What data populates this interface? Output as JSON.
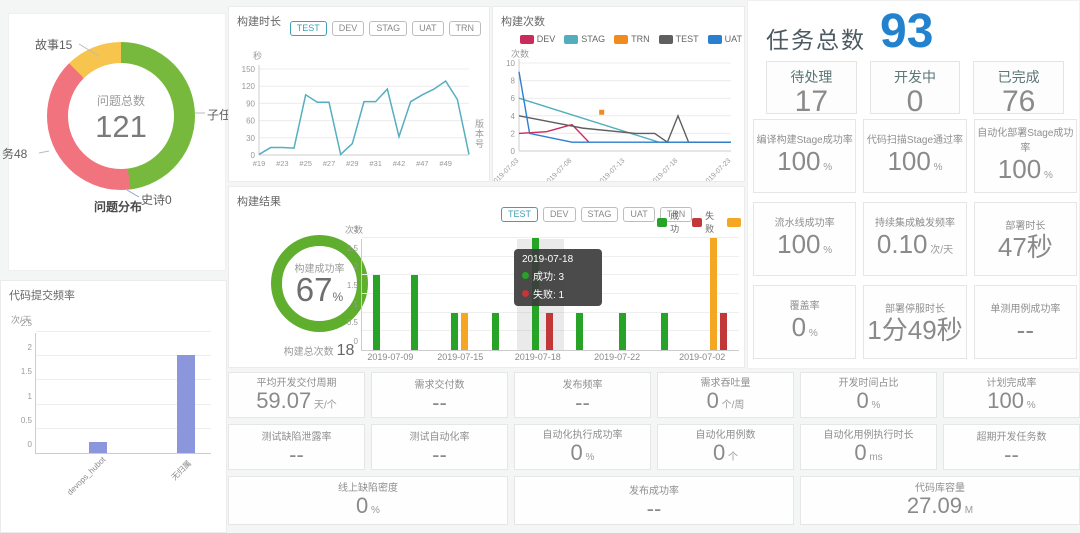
{
  "issue_panel": {
    "title": "问题分布",
    "center_label": "问题总数",
    "center_value": "121",
    "slices": [
      {
        "label": "子任",
        "value": 58,
        "color": "#77b93c"
      },
      {
        "label": "史诗0",
        "value": 0,
        "color": "#9aa7b5"
      },
      {
        "label": "务48",
        "value": 48,
        "color": "#f0737e"
      },
      {
        "label": "故事15",
        "value": 15,
        "color": "#f7c44d"
      }
    ]
  },
  "duration_panel": {
    "title": "构建时长",
    "y_unit": "秒",
    "x_unit": "版本号",
    "line_color": "#56aec0",
    "tabs": [
      {
        "label": "TEST",
        "active": true
      },
      {
        "label": "DEV",
        "active": false
      },
      {
        "label": "STAG",
        "active": false
      },
      {
        "label": "UAT",
        "active": false
      },
      {
        "label": "TRN",
        "active": false
      }
    ],
    "chart_data": {
      "type": "line",
      "ylim": [
        0,
        150
      ],
      "y_ticks": [
        0,
        30,
        60,
        90,
        120,
        150
      ],
      "x_labels": [
        "#19",
        "#23",
        "#25",
        "#27",
        "#29",
        "#31",
        "#42",
        "#47",
        "#49"
      ],
      "values": [
        1,
        13,
        13,
        12,
        105,
        92,
        92,
        1,
        20,
        93,
        93,
        115,
        32,
        93,
        105,
        115,
        129,
        97,
        1
      ]
    }
  },
  "count_panel": {
    "title": "构建次数",
    "y_unit": "次数",
    "chart_data": {
      "type": "line",
      "ylim": [
        0,
        10
      ],
      "y_ticks": [
        0,
        2,
        4,
        6,
        8,
        10
      ],
      "x_labels": [
        "2019-07-03",
        "2019-07-08",
        "2019-07-13",
        "2019-07-18",
        "2019-07-23"
      ],
      "series": [
        {
          "name": "DEV",
          "color": "#cb2a5c",
          "x": [
            0,
            0.13,
            0.25,
            0.33
          ],
          "y": [
            2,
            2.2,
            3,
            1
          ]
        },
        {
          "name": "STAG",
          "color": "#52aebc",
          "x": [
            0,
            0.66,
            0.8,
            1
          ],
          "y": [
            6,
            1,
            1,
            1
          ]
        },
        {
          "name": "TRN",
          "color": "#f08c1e",
          "x": [
            0.39
          ],
          "y": [
            4.4
          ]
        },
        {
          "name": "TEST",
          "color": "#5f5f5f",
          "x": [
            0,
            0.3,
            0.55,
            0.64,
            0.7,
            0.75,
            0.8,
            1
          ],
          "y": [
            4,
            2.6,
            2,
            2,
            1,
            4,
            1,
            1
          ]
        },
        {
          "name": "UAT",
          "color": "#2b7fd0",
          "x": [
            0,
            0.05,
            0.25,
            0.5,
            0.75,
            1
          ],
          "y": [
            9,
            2,
            1,
            1,
            1,
            1
          ]
        }
      ]
    }
  },
  "tasks_panel": {
    "title": "任务总数",
    "value": "93",
    "accent_color": "#2382cd",
    "cards": [
      {
        "label": "待处理",
        "value": "17"
      },
      {
        "label": "开发中",
        "value": "0"
      },
      {
        "label": "已完成",
        "value": "76"
      }
    ]
  },
  "right_metrics": [
    [
      {
        "label": "编译构建Stage成功率",
        "value": "100",
        "unit": "%"
      },
      {
        "label": "代码扫描Stage通过率",
        "value": "100",
        "unit": "%"
      },
      {
        "label": "自动化部署Stage成功率",
        "value": "100",
        "unit": "%"
      }
    ],
    [
      {
        "label": "流水线成功率",
        "value": "100",
        "unit": "%"
      },
      {
        "label": "持续集成触发频率",
        "value": "0.10",
        "unit": "次/天"
      },
      {
        "label": "部署时长",
        "value": "47秒",
        "unit": ""
      }
    ],
    [
      {
        "label": "覆盖率",
        "value": "0",
        "unit": "%"
      },
      {
        "label": "部署停服时长",
        "value": "1分49秒",
        "unit": ""
      },
      {
        "label": "单测用例成功率",
        "value": "--",
        "unit": ""
      }
    ]
  ],
  "result_panel": {
    "title": "构建结果",
    "donut_label": "构建成功率",
    "donut_value": "67",
    "donut_unit": "%",
    "donut_color": "#5fae2d",
    "total_label": "构建总次数",
    "total_value": "18",
    "y_unit": "次数",
    "x_unit": "时间",
    "tabs": [
      {
        "label": "TEST",
        "active": true
      },
      {
        "label": "DEV",
        "active": false
      },
      {
        "label": "STAG",
        "active": false
      },
      {
        "label": "UAT",
        "active": false
      },
      {
        "label": "TRN",
        "active": false
      }
    ],
    "legend": [
      {
        "label": "成功",
        "color": "#27a327"
      },
      {
        "label": "失败",
        "color": "#c23838"
      },
      {
        "label": "",
        "color": "#f5a623"
      }
    ],
    "tooltip": {
      "title": "2019-07-18",
      "rows": [
        {
          "color": "#27a327",
          "text": "成功: 3"
        },
        {
          "color": "#c23838",
          "text": "失败: 1"
        }
      ]
    },
    "chart_data": {
      "type": "bar",
      "ylim": [
        0,
        3
      ],
      "y_ticks": [
        0,
        0.5,
        1,
        1.5,
        2,
        2.5,
        3
      ],
      "x_labels": [
        {
          "text": "2019-07-09",
          "x": 0.075
        },
        {
          "text": "2019-07-15",
          "x": 0.26
        },
        {
          "text": "2019-07-18",
          "x": 0.465
        },
        {
          "text": "2019-07-22",
          "x": 0.675
        },
        {
          "text": "2019-07-02",
          "x": 0.9
        }
      ],
      "highlight": {
        "x0": 0.41,
        "x1": 0.535
      },
      "bars": [
        {
          "x": 0.03,
          "h": 2,
          "color": "#27a327"
        },
        {
          "x": 0.13,
          "h": 2,
          "color": "#27a327"
        },
        {
          "x": 0.235,
          "h": 1,
          "color": "#27a327"
        },
        {
          "x": 0.262,
          "h": 1,
          "color": "#f5a623"
        },
        {
          "x": 0.345,
          "h": 1,
          "color": "#27a327"
        },
        {
          "x": 0.45,
          "h": 3,
          "color": "#27a327"
        },
        {
          "x": 0.487,
          "h": 1,
          "color": "#c23838"
        },
        {
          "x": 0.565,
          "h": 1,
          "color": "#27a327"
        },
        {
          "x": 0.68,
          "h": 1,
          "color": "#27a327"
        },
        {
          "x": 0.79,
          "h": 1,
          "color": "#27a327"
        },
        {
          "x": 0.92,
          "h": 3,
          "color": "#f5a623"
        },
        {
          "x": 0.947,
          "h": 1,
          "color": "#c23838"
        }
      ]
    }
  },
  "commit_panel": {
    "title": "代码提交频率",
    "y_unit": "次/天",
    "bar_color": "#8c96dd",
    "chart_data": {
      "type": "bar",
      "ylim": [
        0,
        2.5
      ],
      "y_ticks": [
        0,
        0.5,
        1,
        1.5,
        2,
        2.5
      ],
      "categories": [
        "devops_hubot",
        "无归属"
      ],
      "values": [
        0.23,
        2.02
      ]
    }
  },
  "bottom_metrics": [
    [
      {
        "label": "平均开发交付周期",
        "value": "59.07",
        "unit": "天/个"
      },
      {
        "label": "需求交付数",
        "value": "--",
        "unit": ""
      },
      {
        "label": "发布频率",
        "value": "--",
        "unit": ""
      },
      {
        "label": "需求吞吐量",
        "value": "0",
        "unit": "个/周"
      },
      {
        "label": "开发时间占比",
        "value": "0",
        "unit": "%"
      },
      {
        "label": "计划完成率",
        "value": "100",
        "unit": "%"
      }
    ],
    [
      {
        "label": "测试缺陷泄露率",
        "value": "--",
        "unit": ""
      },
      {
        "label": "测试自动化率",
        "value": "--",
        "unit": ""
      },
      {
        "label": "自动化执行成功率",
        "value": "0",
        "unit": "%"
      },
      {
        "label": "自动化用例数",
        "value": "0",
        "unit": "个"
      },
      {
        "label": "自动化用例执行时长",
        "value": "0",
        "unit": "ms"
      },
      {
        "label": "超期开发任务数",
        "value": "--",
        "unit": ""
      }
    ],
    [
      {
        "label": "线上缺陷密度",
        "value": "0",
        "unit": "%"
      },
      {
        "label": "发布成功率",
        "value": "--",
        "unit": ""
      },
      {
        "label": "代码库容量",
        "value": "27.09",
        "unit": "M"
      }
    ]
  ]
}
